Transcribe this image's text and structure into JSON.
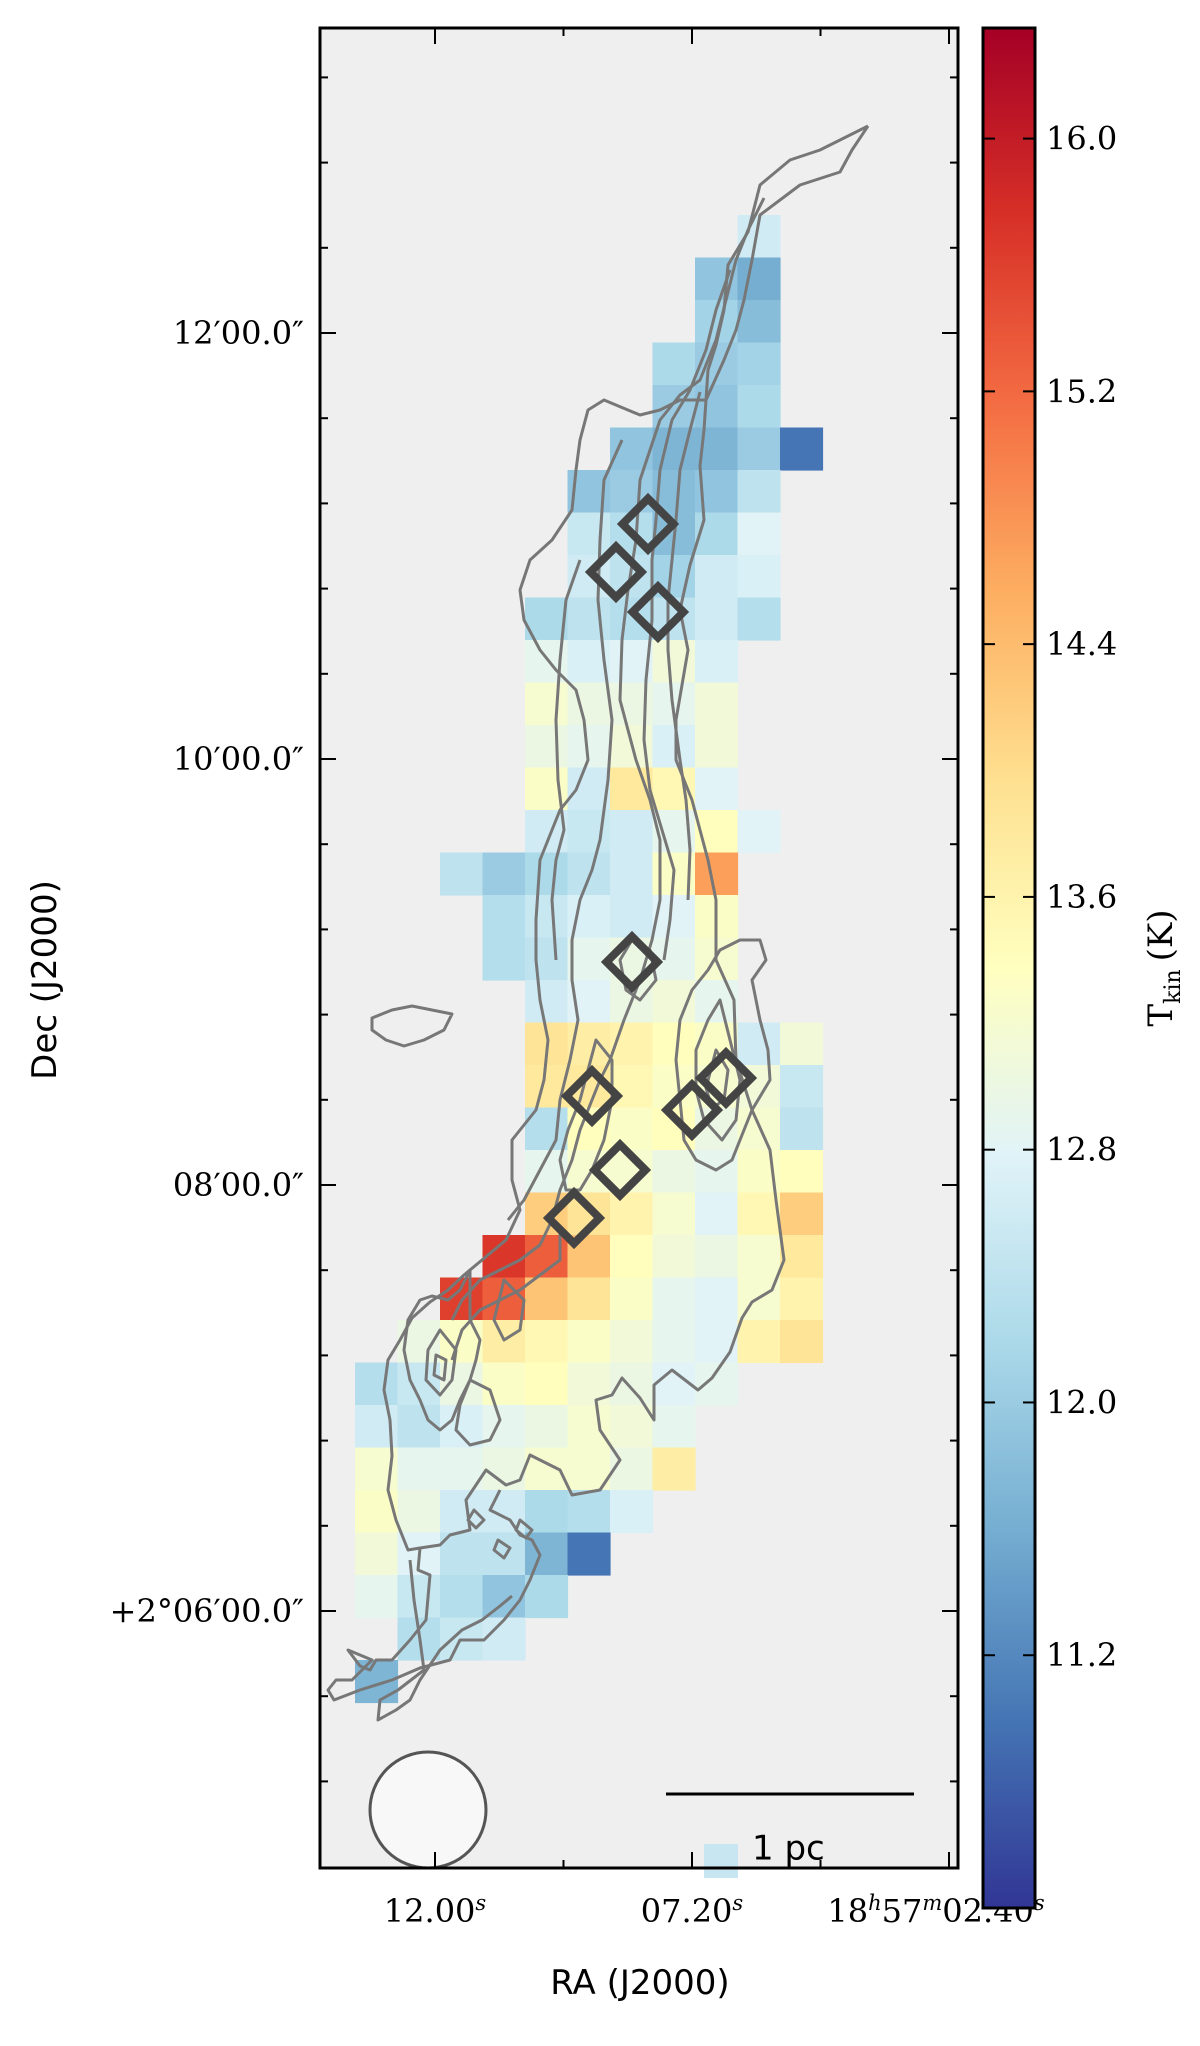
{
  "chart_data": {
    "type": "heatmap",
    "title": "",
    "xlabel": "RA (J2000)",
    "ylabel": "Dec (J2000)",
    "x_ticklabels": [
      {
        "text": "12.00",
        "sup": "s"
      },
      {
        "text": "07.20",
        "sup": "s"
      },
      {
        "text": "18",
        "sup": "h",
        "text2": "57",
        "sup2": "m",
        "text3": "02.40",
        "sup3": "s"
      }
    ],
    "y_ticklabels": [
      "12′00.0″",
      "10′00.0″",
      "08′00.0″",
      "+2°06′00.0″"
    ],
    "colorbar": {
      "label": "T",
      "label_sub": "kin",
      "label_unit": "(K)",
      "ticks": [
        "16.0",
        "15.2",
        "14.4",
        "13.6",
        "12.8",
        "12.0",
        "11.2"
      ],
      "vmin": 10.4,
      "vmax": 16.35,
      "cmap": "RdYlBu_r"
    },
    "scale_bar_label": "1 pc",
    "background_color": "#efefef",
    "contour_color": "#777777",
    "marker_color": "#444444",
    "cells": [
      {
        "row": 0,
        "col": 7,
        "t": 12.6
      },
      {
        "row": 1,
        "col": 6,
        "t": 11.9
      },
      {
        "row": 1,
        "col": 7,
        "t": 11.6
      },
      {
        "row": 2,
        "col": 6,
        "t": 12.1
      },
      {
        "row": 2,
        "col": 7,
        "t": 11.8
      },
      {
        "row": 3,
        "col": 5,
        "t": 12.2
      },
      {
        "row": 3,
        "col": 6,
        "t": 12.0
      },
      {
        "row": 3,
        "col": 7,
        "t": 12.1
      },
      {
        "row": 4,
        "col": 5,
        "t": 12.0
      },
      {
        "row": 4,
        "col": 6,
        "t": 11.9
      },
      {
        "row": 4,
        "col": 7,
        "t": 12.2
      },
      {
        "row": 5,
        "col": 4,
        "t": 11.9
      },
      {
        "row": 5,
        "col": 5,
        "t": 11.7
      },
      {
        "row": 5,
        "col": 6,
        "t": 11.7
      },
      {
        "row": 5,
        "col": 7,
        "t": 12.0
      },
      {
        "row": 5,
        "col": 8,
        "t": 11.0
      },
      {
        "row": 6,
        "col": 3,
        "t": 11.9
      },
      {
        "row": 6,
        "col": 4,
        "t": 12.0
      },
      {
        "row": 6,
        "col": 5,
        "t": 11.8
      },
      {
        "row": 6,
        "col": 6,
        "t": 11.9
      },
      {
        "row": 6,
        "col": 7,
        "t": 12.4
      },
      {
        "row": 7,
        "col": 3,
        "t": 12.5
      },
      {
        "row": 7,
        "col": 4,
        "t": 12.3
      },
      {
        "row": 7,
        "col": 5,
        "t": 11.8
      },
      {
        "row": 7,
        "col": 6,
        "t": 12.2
      },
      {
        "row": 7,
        "col": 7,
        "t": 12.8
      },
      {
        "row": 8,
        "col": 3,
        "t": 12.6
      },
      {
        "row": 8,
        "col": 4,
        "t": 12.4
      },
      {
        "row": 8,
        "col": 5,
        "t": 12.1
      },
      {
        "row": 8,
        "col": 6,
        "t": 12.6
      },
      {
        "row": 8,
        "col": 7,
        "t": 12.7
      },
      {
        "row": 9,
        "col": 2,
        "t": 12.2
      },
      {
        "row": 9,
        "col": 3,
        "t": 12.4
      },
      {
        "row": 9,
        "col": 4,
        "t": 12.3
      },
      {
        "row": 9,
        "col": 5,
        "t": 12.4
      },
      {
        "row": 9,
        "col": 6,
        "t": 12.6
      },
      {
        "row": 9,
        "col": 7,
        "t": 12.3
      },
      {
        "row": 10,
        "col": 2,
        "t": 12.9
      },
      {
        "row": 10,
        "col": 3,
        "t": 12.7
      },
      {
        "row": 10,
        "col": 4,
        "t": 12.8
      },
      {
        "row": 10,
        "col": 5,
        "t": 13.1
      },
      {
        "row": 10,
        "col": 6,
        "t": 12.7
      },
      {
        "row": 11,
        "col": 2,
        "t": 13.2
      },
      {
        "row": 11,
        "col": 3,
        "t": 13.0
      },
      {
        "row": 11,
        "col": 4,
        "t": 13.0
      },
      {
        "row": 11,
        "col": 5,
        "t": 12.9
      },
      {
        "row": 11,
        "col": 6,
        "t": 13.1
      },
      {
        "row": 12,
        "col": 2,
        "t": 13.0
      },
      {
        "row": 12,
        "col": 3,
        "t": 12.9
      },
      {
        "row": 12,
        "col": 4,
        "t": 13.1
      },
      {
        "row": 12,
        "col": 5,
        "t": 12.7
      },
      {
        "row": 12,
        "col": 6,
        "t": 13.1
      },
      {
        "row": 13,
        "col": 2,
        "t": 13.3
      },
      {
        "row": 13,
        "col": 3,
        "t": 12.6
      },
      {
        "row": 13,
        "col": 4,
        "t": 13.8
      },
      {
        "row": 13,
        "col": 5,
        "t": 13.5
      },
      {
        "row": 13,
        "col": 6,
        "t": 12.8
      },
      {
        "row": 14,
        "col": 2,
        "t": 12.6
      },
      {
        "row": 14,
        "col": 3,
        "t": 12.5
      },
      {
        "row": 14,
        "col": 4,
        "t": 12.6
      },
      {
        "row": 14,
        "col": 5,
        "t": 12.9
      },
      {
        "row": 14,
        "col": 6,
        "t": 13.4
      },
      {
        "row": 14,
        "col": 7,
        "t": 12.8
      },
      {
        "row": 15,
        "col": 0,
        "t": 12.4
      },
      {
        "row": 15,
        "col": 1,
        "t": 12.0
      },
      {
        "row": 15,
        "col": 2,
        "t": 12.2
      },
      {
        "row": 15,
        "col": 3,
        "t": 12.4
      },
      {
        "row": 15,
        "col": 4,
        "t": 12.6
      },
      {
        "row": 15,
        "col": 5,
        "t": 13.3
      },
      {
        "row": 15,
        "col": 6,
        "t": 14.7
      },
      {
        "row": 16,
        "col": 1,
        "t": 12.3
      },
      {
        "row": 16,
        "col": 2,
        "t": 12.5
      },
      {
        "row": 16,
        "col": 3,
        "t": 12.7
      },
      {
        "row": 16,
        "col": 4,
        "t": 12.6
      },
      {
        "row": 16,
        "col": 5,
        "t": 12.8
      },
      {
        "row": 16,
        "col": 6,
        "t": 13.3
      },
      {
        "row": 17,
        "col": 1,
        "t": 12.3
      },
      {
        "row": 17,
        "col": 2,
        "t": 12.4
      },
      {
        "row": 17,
        "col": 3,
        "t": 12.9
      },
      {
        "row": 17,
        "col": 4,
        "t": 13.0
      },
      {
        "row": 17,
        "col": 5,
        "t": 12.9
      },
      {
        "row": 17,
        "col": 6,
        "t": 13.2
      },
      {
        "row": 18,
        "col": 2,
        "t": 12.6
      },
      {
        "row": 18,
        "col": 3,
        "t": 12.8
      },
      {
        "row": 18,
        "col": 4,
        "t": 13.0
      },
      {
        "row": 18,
        "col": 5,
        "t": 13.1
      },
      {
        "row": 18,
        "col": 6,
        "t": 12.9
      },
      {
        "row": 19,
        "col": 2,
        "t": 13.9
      },
      {
        "row": 19,
        "col": 3,
        "t": 13.7
      },
      {
        "row": 19,
        "col": 4,
        "t": 13.6
      },
      {
        "row": 19,
        "col": 5,
        "t": 13.4
      },
      {
        "row": 19,
        "col": 6,
        "t": 13.3
      },
      {
        "row": 19,
        "col": 7,
        "t": 12.6
      },
      {
        "row": 19,
        "col": 8,
        "t": 13.1
      },
      {
        "row": 20,
        "col": 2,
        "t": 13.8
      },
      {
        "row": 20,
        "col": 3,
        "t": 13.8
      },
      {
        "row": 20,
        "col": 4,
        "t": 13.5
      },
      {
        "row": 20,
        "col": 5,
        "t": 13.3
      },
      {
        "row": 20,
        "col": 6,
        "t": 13.2
      },
      {
        "row": 20,
        "col": 7,
        "t": 13.1
      },
      {
        "row": 20,
        "col": 8,
        "t": 12.5
      },
      {
        "row": 21,
        "col": 2,
        "t": 12.3
      },
      {
        "row": 21,
        "col": 3,
        "t": 13.4
      },
      {
        "row": 21,
        "col": 4,
        "t": 13.3
      },
      {
        "row": 21,
        "col": 5,
        "t": 13.4
      },
      {
        "row": 21,
        "col": 6,
        "t": 13.0
      },
      {
        "row": 21,
        "col": 7,
        "t": 13.2
      },
      {
        "row": 21,
        "col": 8,
        "t": 12.4
      },
      {
        "row": 22,
        "col": 2,
        "t": 12.9
      },
      {
        "row": 22,
        "col": 3,
        "t": 13.2
      },
      {
        "row": 22,
        "col": 4,
        "t": 13.2
      },
      {
        "row": 22,
        "col": 5,
        "t": 13.0
      },
      {
        "row": 22,
        "col": 6,
        "t": 12.9
      },
      {
        "row": 22,
        "col": 7,
        "t": 13.3
      },
      {
        "row": 22,
        "col": 8,
        "t": 13.4
      },
      {
        "row": 23,
        "col": 2,
        "t": 14.2
      },
      {
        "row": 23,
        "col": 3,
        "t": 13.9
      },
      {
        "row": 23,
        "col": 4,
        "t": 13.6
      },
      {
        "row": 23,
        "col": 5,
        "t": 13.2
      },
      {
        "row": 23,
        "col": 6,
        "t": 12.8
      },
      {
        "row": 23,
        "col": 7,
        "t": 13.5
      },
      {
        "row": 23,
        "col": 8,
        "t": 14.2
      },
      {
        "row": 24,
        "col": 1,
        "t": 15.7
      },
      {
        "row": 24,
        "col": 2,
        "t": 15.3
      },
      {
        "row": 24,
        "col": 3,
        "t": 14.3
      },
      {
        "row": 24,
        "col": 4,
        "t": 13.4
      },
      {
        "row": 24,
        "col": 5,
        "t": 13.1
      },
      {
        "row": 24,
        "col": 6,
        "t": 13.0
      },
      {
        "row": 24,
        "col": 7,
        "t": 13.2
      },
      {
        "row": 24,
        "col": 8,
        "t": 13.8
      },
      {
        "row": 25,
        "col": 0,
        "t": 15.6
      },
      {
        "row": 25,
        "col": 1,
        "t": 15.3
      },
      {
        "row": 25,
        "col": 2,
        "t": 14.3
      },
      {
        "row": 25,
        "col": 3,
        "t": 13.9
      },
      {
        "row": 25,
        "col": 4,
        "t": 13.3
      },
      {
        "row": 25,
        "col": 5,
        "t": 12.9
      },
      {
        "row": 25,
        "col": 6,
        "t": 12.8
      },
      {
        "row": 25,
        "col": 7,
        "t": 13.2
      },
      {
        "row": 25,
        "col": 8,
        "t": 13.6
      },
      {
        "row": 26,
        "col": -1,
        "t": 13.0
      },
      {
        "row": 26,
        "col": 0,
        "t": 13.3
      },
      {
        "row": 26,
        "col": 1,
        "t": 13.7
      },
      {
        "row": 26,
        "col": 2,
        "t": 13.5
      },
      {
        "row": 26,
        "col": 3,
        "t": 13.3
      },
      {
        "row": 26,
        "col": 4,
        "t": 13.1
      },
      {
        "row": 26,
        "col": 5,
        "t": 12.9
      },
      {
        "row": 26,
        "col": 6,
        "t": 12.8
      },
      {
        "row": 26,
        "col": 7,
        "t": 13.6
      },
      {
        "row": 26,
        "col": 8,
        "t": 13.9
      },
      {
        "row": 27,
        "col": -2,
        "t": 12.3
      },
      {
        "row": 27,
        "col": -1,
        "t": 12.5
      },
      {
        "row": 27,
        "col": 0,
        "t": 13.0
      },
      {
        "row": 27,
        "col": 1,
        "t": 13.3
      },
      {
        "row": 27,
        "col": 2,
        "t": 13.4
      },
      {
        "row": 27,
        "col": 3,
        "t": 13.1
      },
      {
        "row": 27,
        "col": 4,
        "t": 13.0
      },
      {
        "row": 27,
        "col": 5,
        "t": 12.8
      },
      {
        "row": 27,
        "col": 6,
        "t": 12.9
      },
      {
        "row": 28,
        "col": -2,
        "t": 12.6
      },
      {
        "row": 28,
        "col": -1,
        "t": 12.4
      },
      {
        "row": 28,
        "col": 0,
        "t": 12.7
      },
      {
        "row": 28,
        "col": 1,
        "t": 12.9
      },
      {
        "row": 28,
        "col": 2,
        "t": 13.0
      },
      {
        "row": 28,
        "col": 3,
        "t": 13.2
      },
      {
        "row": 28,
        "col": 4,
        "t": 13.1
      },
      {
        "row": 28,
        "col": 5,
        "t": 12.9
      },
      {
        "row": 29,
        "col": -2,
        "t": 13.2
      },
      {
        "row": 29,
        "col": -1,
        "t": 12.9
      },
      {
        "row": 29,
        "col": 0,
        "t": 12.9
      },
      {
        "row": 29,
        "col": 1,
        "t": 13.0
      },
      {
        "row": 29,
        "col": 2,
        "t": 13.2
      },
      {
        "row": 29,
        "col": 3,
        "t": 13.2
      },
      {
        "row": 29,
        "col": 4,
        "t": 13.0
      },
      {
        "row": 29,
        "col": 5,
        "t": 13.7
      },
      {
        "row": 30,
        "col": -2,
        "t": 13.3
      },
      {
        "row": 30,
        "col": -1,
        "t": 13.0
      },
      {
        "row": 30,
        "col": 0,
        "t": 12.6
      },
      {
        "row": 30,
        "col": 1,
        "t": 12.6
      },
      {
        "row": 30,
        "col": 2,
        "t": 12.2
      },
      {
        "row": 30,
        "col": 3,
        "t": 12.3
      },
      {
        "row": 30,
        "col": 4,
        "t": 12.7
      },
      {
        "row": 31,
        "col": -2,
        "t": 13.1
      },
      {
        "row": 31,
        "col": -1,
        "t": 12.8
      },
      {
        "row": 31,
        "col": 0,
        "t": 12.4
      },
      {
        "row": 31,
        "col": 1,
        "t": 12.4
      },
      {
        "row": 31,
        "col": 2,
        "t": 11.7
      },
      {
        "row": 31,
        "col": 3,
        "t": 11.0
      },
      {
        "row": 32,
        "col": -2,
        "t": 12.9
      },
      {
        "row": 32,
        "col": -1,
        "t": 12.5
      },
      {
        "row": 32,
        "col": 0,
        "t": 12.3
      },
      {
        "row": 32,
        "col": 1,
        "t": 11.9
      },
      {
        "row": 32,
        "col": 2,
        "t": 12.2
      },
      {
        "row": 33,
        "col": -1,
        "t": 12.3
      },
      {
        "row": 33,
        "col": 0,
        "t": 12.5
      },
      {
        "row": 33,
        "col": 1,
        "t": 12.6
      },
      {
        "row": 34,
        "col": -2,
        "t": 11.7
      }
    ]
  }
}
